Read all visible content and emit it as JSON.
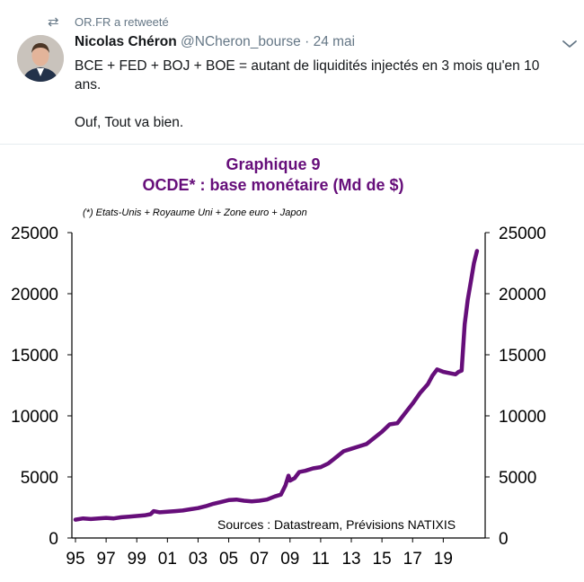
{
  "retweet": {
    "text": "OR.FR a retweeté",
    "icon": "retweet-icon"
  },
  "tweet": {
    "author_name": "Nicolas Chéron",
    "handle": "@NCheron_bourse",
    "separator": "·",
    "date": "24 mai",
    "text_line1": "BCE + FED + BOJ + BOE = autant de liquidités injectés en 3 mois qu'en 10 ans.",
    "text_line2": "Ouf, Tout va bien."
  },
  "colors": {
    "accent": "#660e7a",
    "secondary_text": "#657786",
    "text": "#14171a"
  },
  "chart_data": {
    "type": "line",
    "title": "Graphique 9",
    "subtitle": "OCDE* : base monétaire (Md de $)",
    "note": "(*) Etats-Unis + Royaume Uni + Zone euro + Japon",
    "source": "Sources : Datastream, Prévisions NATIXIS",
    "x_tick_labels": [
      "95",
      "97",
      "99",
      "01",
      "03",
      "05",
      "07",
      "09",
      "11",
      "13",
      "15",
      "17",
      "19"
    ],
    "y_tick_labels": [
      "0",
      "5000",
      "10000",
      "15000",
      "20000",
      "25000"
    ],
    "ylim": [
      0,
      25000
    ],
    "xlim": [
      1995,
      2021.5
    ],
    "grid": false,
    "series": [
      {
        "x": [
          1995.0,
          1995.5,
          1996.0,
          1996.5,
          1997.0,
          1997.5,
          1998.0,
          1998.5,
          1999.0,
          1999.5,
          1999.9,
          2000.1,
          2000.5,
          2001.0,
          2001.5,
          2002.0,
          2002.5,
          2003.0,
          2003.5,
          2004.0,
          2004.5,
          2005.0,
          2005.5,
          2006.0,
          2006.5,
          2007.0,
          2007.5,
          2008.0,
          2008.4,
          2008.7,
          2008.9,
          2009.0,
          2009.3,
          2009.6,
          2010.0,
          2010.5,
          2011.0,
          2011.5,
          2012.0,
          2012.5,
          2013.0,
          2013.5,
          2014.0,
          2014.5,
          2015.0,
          2015.5,
          2016.0,
          2016.5,
          2017.0,
          2017.5,
          2018.0,
          2018.3,
          2018.6,
          2019.0,
          2019.4,
          2019.8,
          2020.0,
          2020.2,
          2020.4,
          2020.6,
          2020.8,
          2021.0,
          2021.2
        ],
        "y": [
          1500,
          1600,
          1550,
          1600,
          1650,
          1600,
          1700,
          1750,
          1800,
          1850,
          1950,
          2200,
          2100,
          2150,
          2200,
          2250,
          2350,
          2450,
          2600,
          2800,
          2950,
          3100,
          3150,
          3050,
          3000,
          3050,
          3150,
          3400,
          3550,
          4300,
          5100,
          4700,
          4900,
          5400,
          5500,
          5700,
          5800,
          6100,
          6600,
          7100,
          7300,
          7500,
          7700,
          8200,
          8700,
          9300,
          9400,
          10200,
          11000,
          11900,
          12600,
          13300,
          13800,
          13600,
          13500,
          13400,
          13600,
          13700,
          17500,
          19500,
          21000,
          22500,
          23500
        ]
      }
    ]
  }
}
